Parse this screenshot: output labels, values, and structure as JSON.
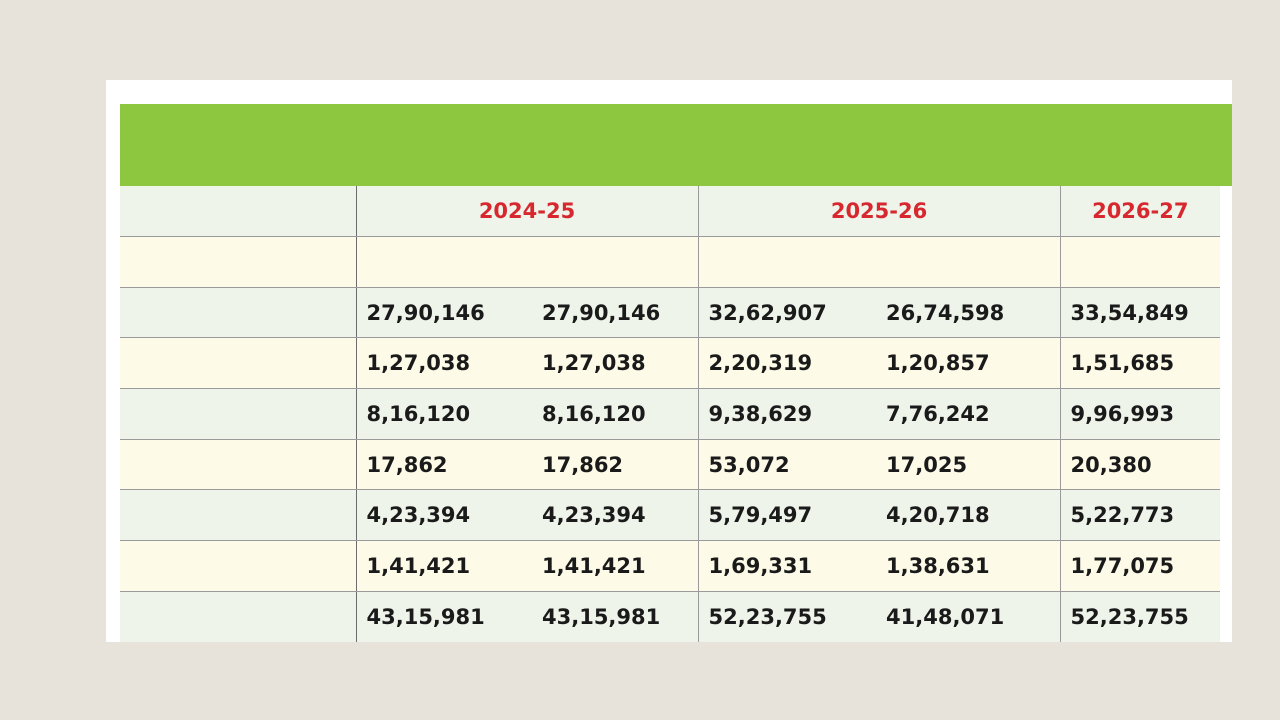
{
  "table": {
    "years": [
      "2024-25",
      "2025-26",
      "2026-27"
    ],
    "rows": [
      {
        "values": [
          "27,90,146",
          "27,90,146",
          "32,62,907",
          "26,74,598",
          "33,54,849"
        ]
      },
      {
        "values": [
          "1,27,038",
          "1,27,038",
          "2,20,319",
          "1,20,857",
          "1,51,685"
        ]
      },
      {
        "values": [
          "8,16,120",
          "8,16,120",
          "9,38,629",
          "7,76,242",
          "9,96,993"
        ]
      },
      {
        "values": [
          "17,862",
          "17,862",
          "53,072",
          "17,025",
          "20,380"
        ]
      },
      {
        "values": [
          "4,23,394",
          "4,23,394",
          "5,79,497",
          "4,20,718",
          "5,22,773"
        ]
      },
      {
        "values": [
          "1,41,421",
          "1,41,421",
          "1,69,331",
          "1,38,631",
          "1,77,075"
        ]
      },
      {
        "values": [
          "43,15,981",
          "43,15,981",
          "52,23,755",
          "41,48,071",
          "52,23,755"
        ]
      }
    ]
  }
}
